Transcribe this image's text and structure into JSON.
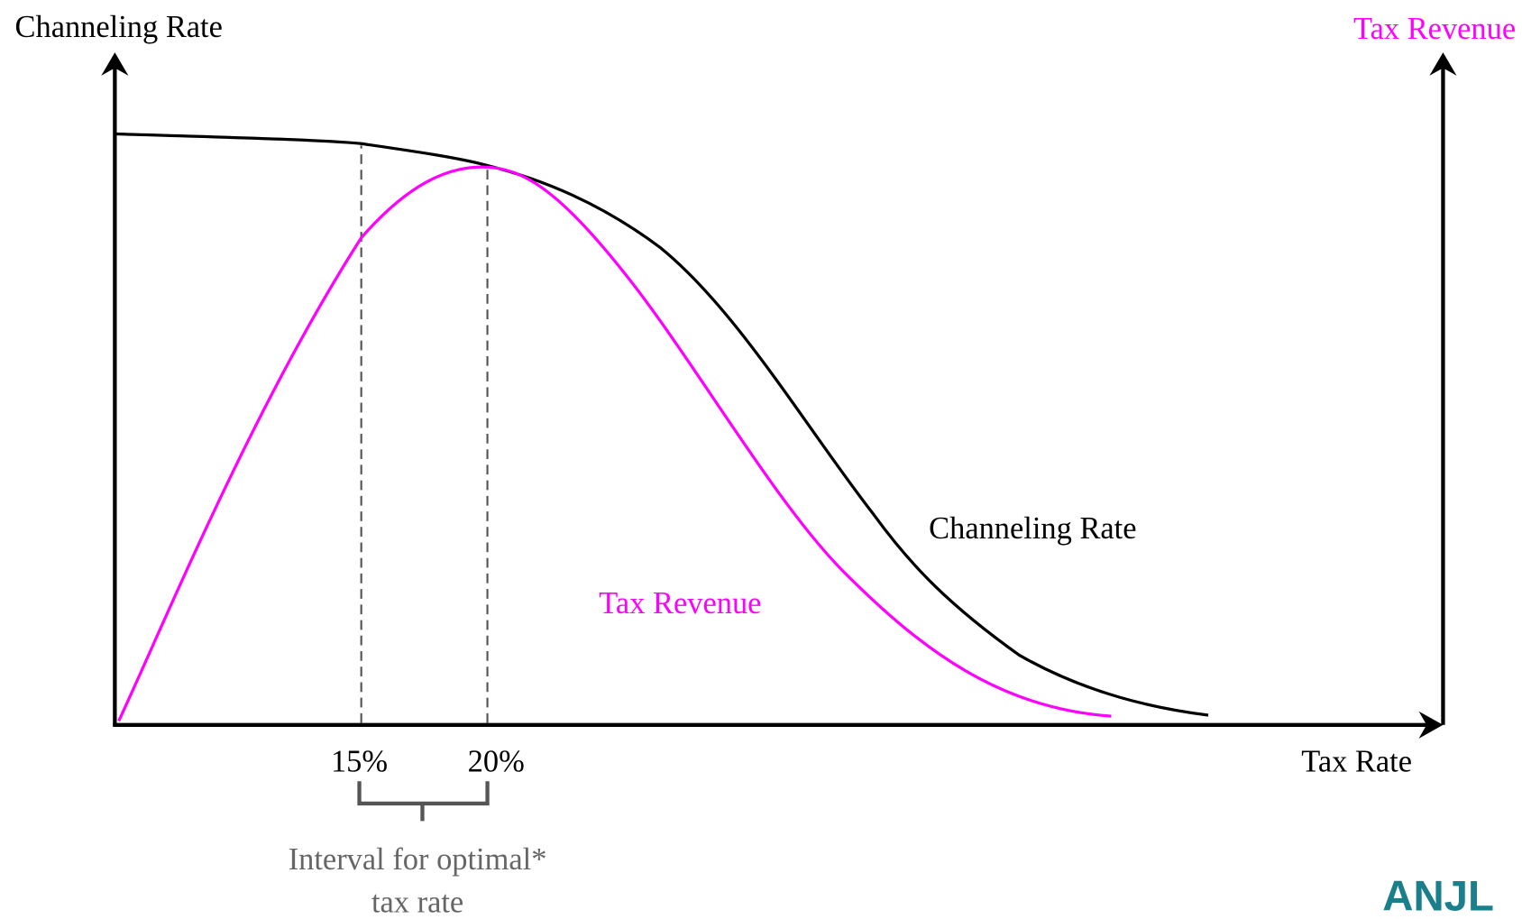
{
  "axes": {
    "y_label": "Channeling Rate",
    "y2_label": "Tax Revenue",
    "x_label": "Tax Rate"
  },
  "ticks": [
    "15%",
    "20%"
  ],
  "annotation": [
    "Interval for optimal*",
    "tax rate"
  ],
  "curve_labels": {
    "channeling": "Channeling Rate",
    "revenue": "Tax Revenue"
  },
  "logo": "ANJL"
}
